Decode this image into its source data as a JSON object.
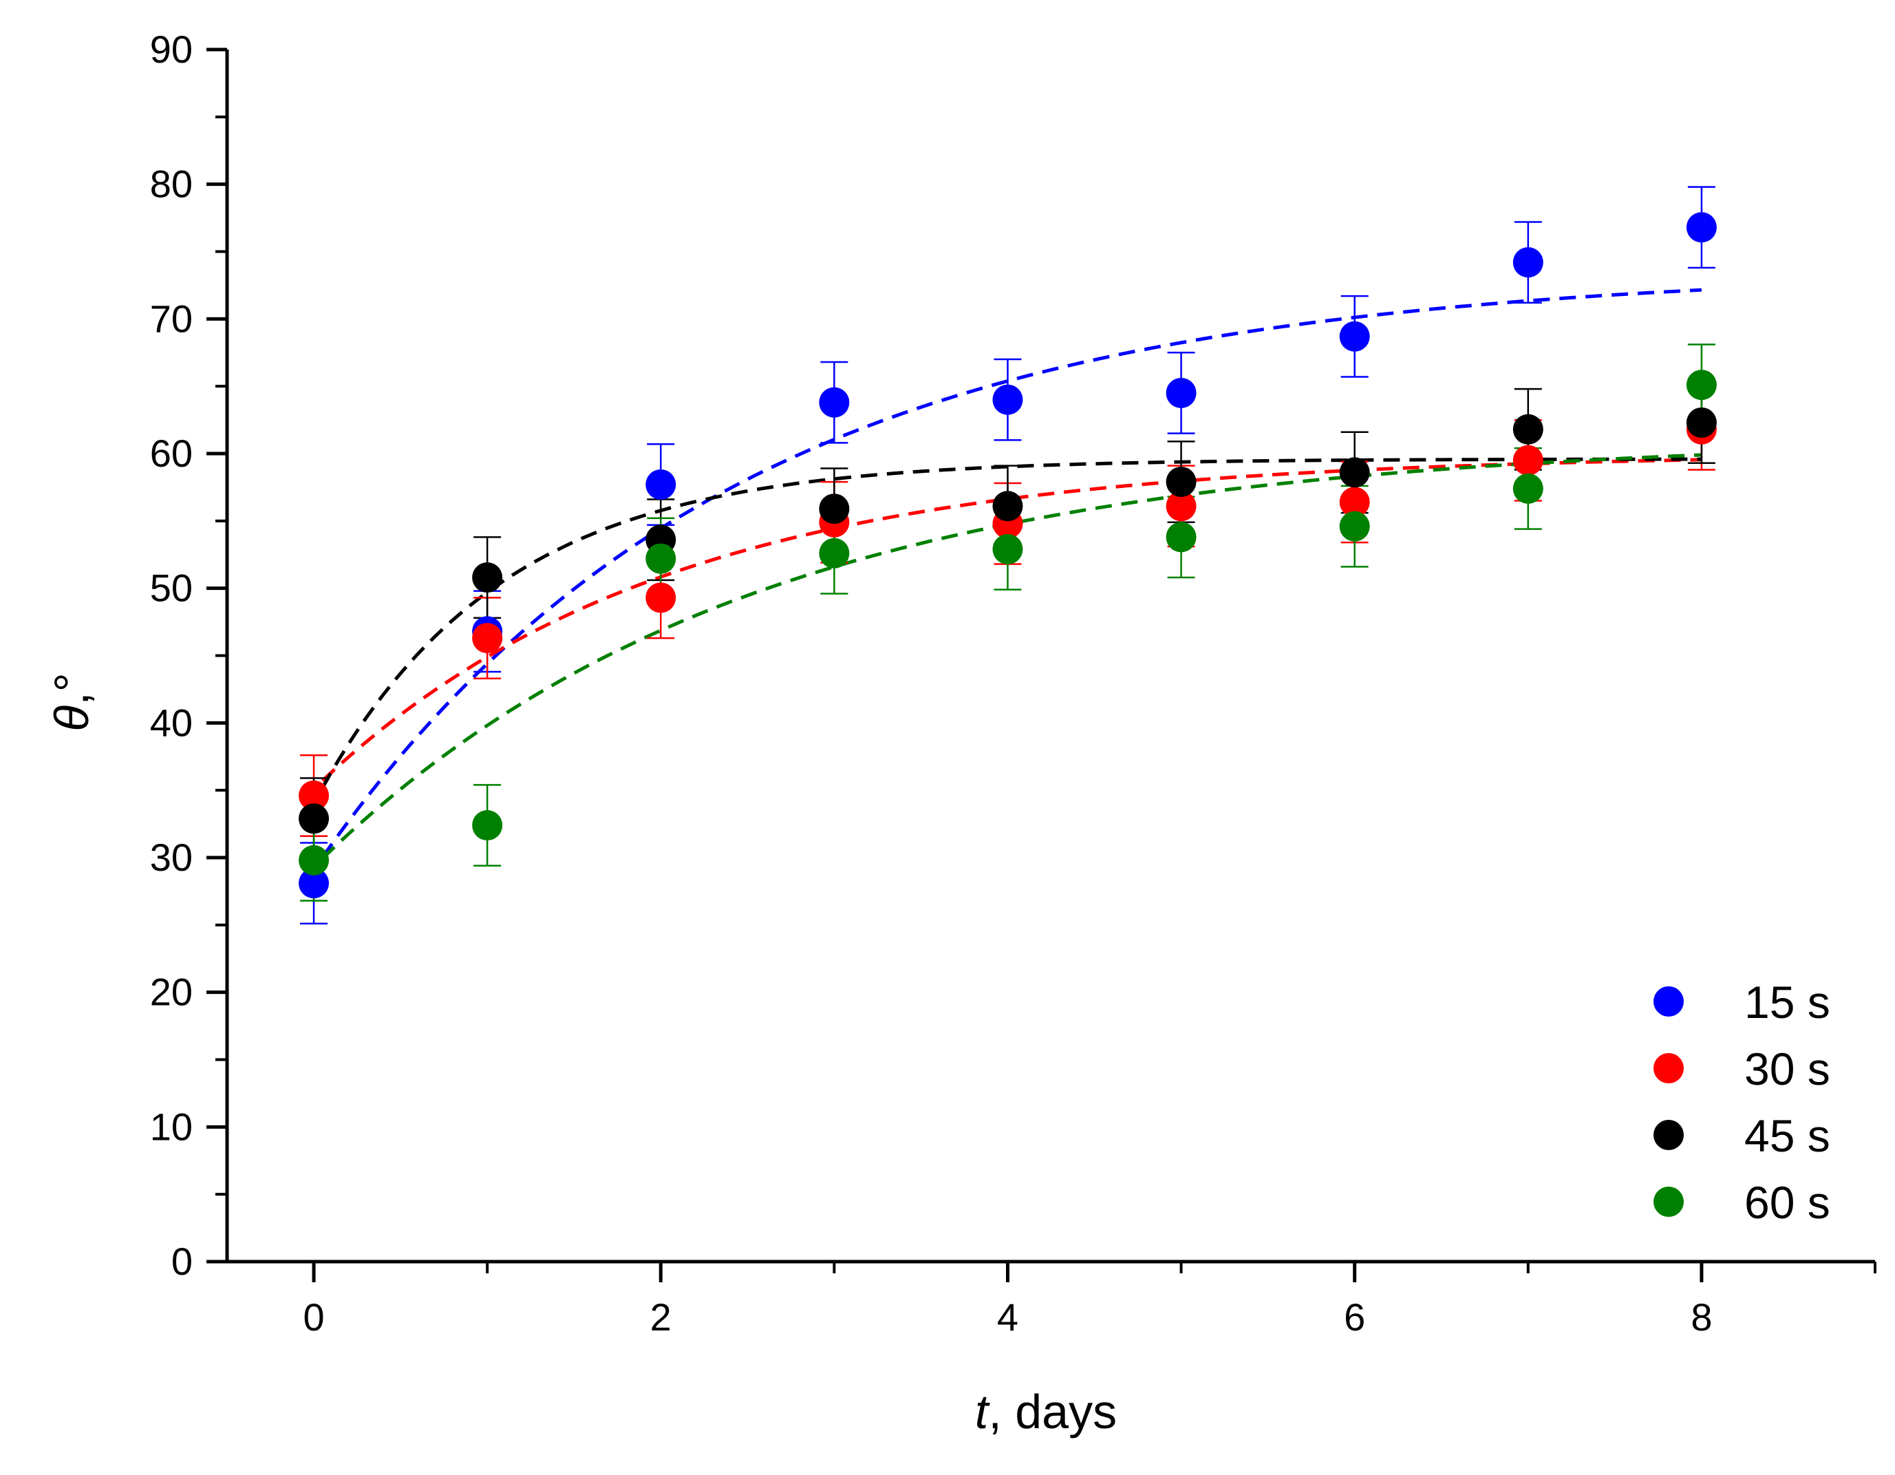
{
  "chart_data": {
    "type": "scatter",
    "xlabel_var": "t",
    "xlabel_rest": ", days",
    "ylabel_var": "θ",
    "ylabel_rest": ",°",
    "xlim": [
      -0.5,
      9
    ],
    "ylim": [
      0,
      90
    ],
    "x_ticks": [
      0,
      2,
      4,
      6,
      8
    ],
    "x_tick_labels": [
      "0",
      "2",
      "4",
      "6",
      "8"
    ],
    "x_minor_ticks": [
      1,
      3,
      5,
      7,
      9
    ],
    "y_ticks": [
      0,
      10,
      20,
      30,
      40,
      50,
      60,
      70,
      80,
      90
    ],
    "y_tick_labels": [
      "0",
      "10",
      "20",
      "30",
      "40",
      "50",
      "60",
      "70",
      "80",
      "90"
    ],
    "legend_position": "bottom-right",
    "series": [
      {
        "name": "15 s",
        "color": "#0000ff",
        "x": [
          0,
          1,
          2,
          3,
          4,
          5,
          6,
          7,
          8
        ],
        "y": [
          28.1,
          46.8,
          57.7,
          63.8,
          64.0,
          64.5,
          68.7,
          74.2,
          76.8
        ],
        "err": [
          3.0,
          3.0,
          3.0,
          3.0,
          3.0,
          3.0,
          3.0,
          3.0,
          3.0
        ],
        "fit": {
          "a": 73.7,
          "b": 44.6,
          "k": 0.42
        }
      },
      {
        "name": "30 s",
        "color": "#ff0000",
        "x": [
          0,
          1,
          2,
          3,
          4,
          5,
          6,
          7,
          8
        ],
        "y": [
          34.6,
          46.3,
          49.3,
          54.9,
          54.8,
          56.1,
          56.4,
          59.5,
          61.8
        ],
        "err": [
          3.0,
          3.0,
          3.0,
          3.0,
          3.0,
          3.0,
          3.0,
          3.0,
          3.0
        ],
        "fit": {
          "a": 60.0,
          "b": 24.9,
          "k": 0.5
        }
      },
      {
        "name": "45 s",
        "color": "#000000",
        "x": [
          0,
          1,
          2,
          3,
          4,
          5,
          6,
          7,
          8
        ],
        "y": [
          32.9,
          50.8,
          53.6,
          55.9,
          56.1,
          57.9,
          58.6,
          61.8,
          62.3
        ],
        "err": [
          3.0,
          3.0,
          3.0,
          3.0,
          3.0,
          3.0,
          3.0,
          3.0,
          3.0
        ],
        "fit": {
          "a": 59.6,
          "b": 25.6,
          "k": 0.95
        }
      },
      {
        "name": "60 s",
        "color": "#008000",
        "x": [
          0,
          1,
          2,
          3,
          4,
          5,
          6,
          7,
          8
        ],
        "y": [
          29.8,
          32.4,
          52.2,
          52.6,
          52.9,
          53.8,
          54.6,
          57.4,
          65.1
        ],
        "err": [
          3.0,
          3.0,
          3.0,
          3.0,
          3.0,
          3.0,
          3.0,
          3.0,
          3.0
        ],
        "fit": {
          "a": 61.2,
          "b": 31.9,
          "k": 0.4
        }
      }
    ]
  }
}
